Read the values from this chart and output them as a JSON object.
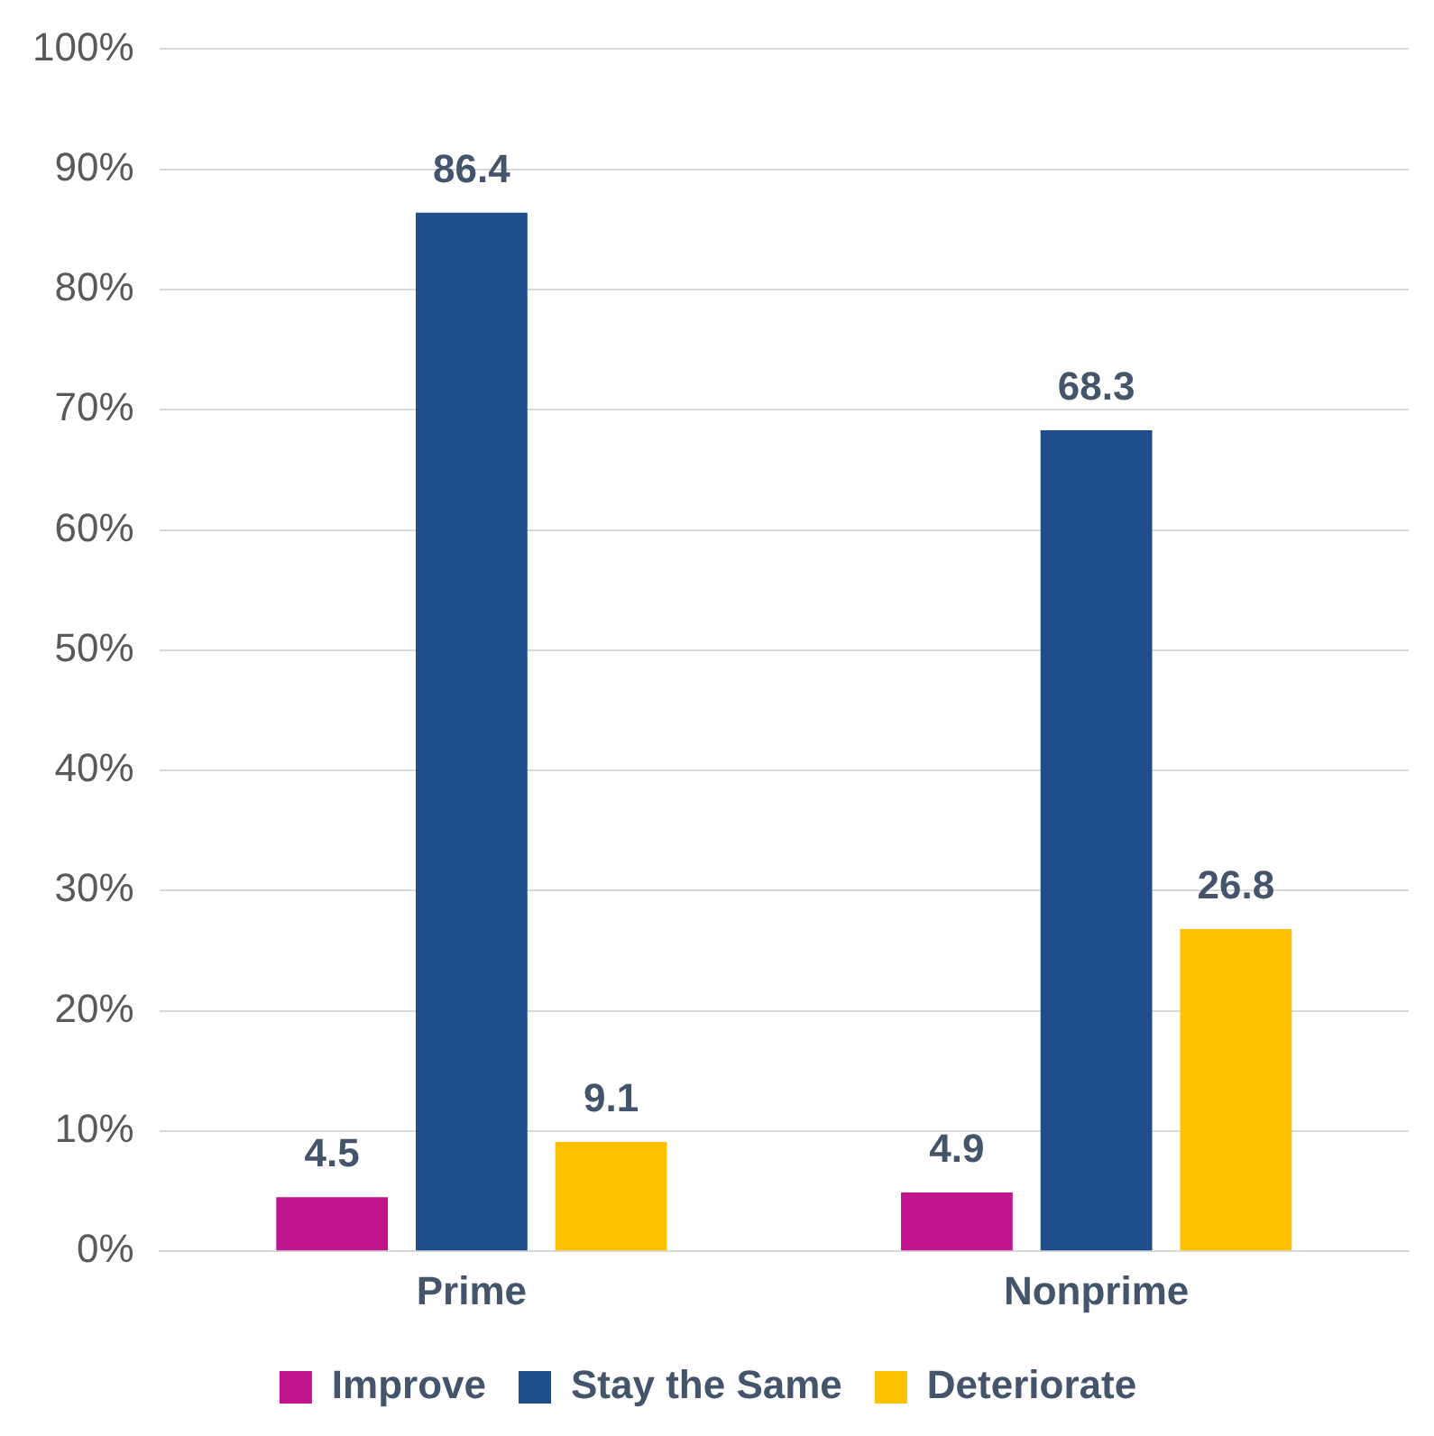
{
  "chart_data": {
    "type": "bar",
    "categories": [
      "Prime",
      "Nonprime"
    ],
    "series": [
      {
        "name": "Improve",
        "color": "#c0158c",
        "values": [
          4.5,
          4.9
        ]
      },
      {
        "name": "Stay the Same",
        "color": "#1f4e8d",
        "values": [
          86.4,
          68.3
        ]
      },
      {
        "name": "Deteriorate",
        "color": "#ffc000",
        "values": [
          9.1,
          26.8
        ]
      }
    ],
    "ylim": [
      0,
      100
    ],
    "yticks": [
      {
        "value": 0,
        "label": "0%"
      },
      {
        "value": 10,
        "label": "10%"
      },
      {
        "value": 20,
        "label": "20%"
      },
      {
        "value": 30,
        "label": "30%"
      },
      {
        "value": 40,
        "label": "40%"
      },
      {
        "value": 50,
        "label": "50%"
      },
      {
        "value": 60,
        "label": "60%"
      },
      {
        "value": 70,
        "label": "70%"
      },
      {
        "value": 80,
        "label": "80%"
      },
      {
        "value": 90,
        "label": "90%"
      },
      {
        "value": 100,
        "label": "100%"
      }
    ],
    "grid": "y",
    "legend": "bottom",
    "data_labels": true
  }
}
